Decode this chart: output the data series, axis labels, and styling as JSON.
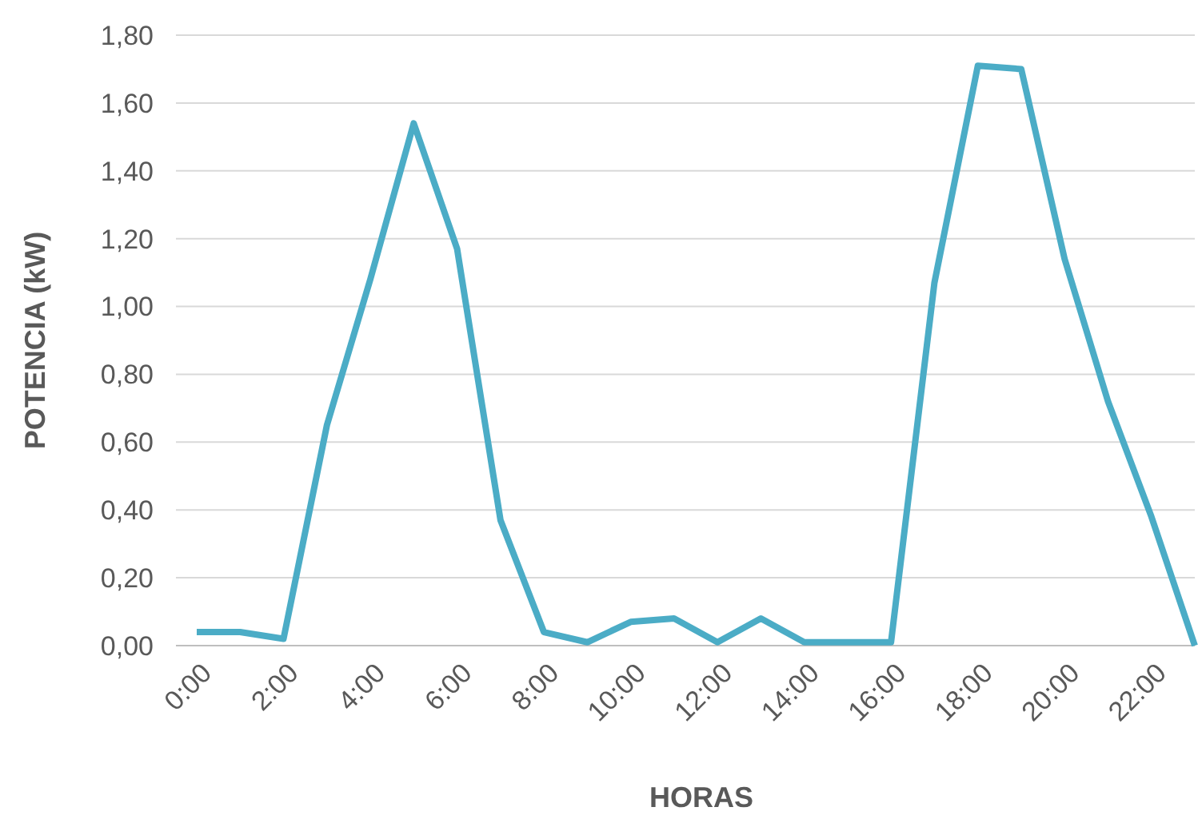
{
  "chart_data": {
    "type": "line",
    "xlabel": "HORAS",
    "ylabel": "POTENCIA (kW)",
    "categories": [
      "0:00",
      null,
      "2:00",
      null,
      "4:00",
      null,
      "6:00",
      null,
      "8:00",
      null,
      "10:00",
      null,
      "12:00",
      null,
      "14:00",
      null,
      "16:00",
      null,
      "18:00",
      null,
      "20:00",
      null,
      "22:00",
      null
    ],
    "series": [
      {
        "color": "#4bacc6",
        "values": [
          0.04,
          0.04,
          0.02,
          0.65,
          1.08,
          1.54,
          1.17,
          0.37,
          0.04,
          0.01,
          0.07,
          0.08,
          0.01,
          0.08,
          0.01,
          0.01,
          0.01,
          1.07,
          1.71,
          1.7,
          1.14,
          0.72,
          0.38,
          0.0
        ]
      }
    ],
    "ylim": [
      0,
      1.8
    ],
    "yticks": [
      {
        "value": 0,
        "label": "0,00"
      },
      {
        "value": 0.2,
        "label": "0,20"
      },
      {
        "value": 0.4,
        "label": "0,40"
      },
      {
        "value": 0.6,
        "label": "0,60"
      },
      {
        "value": 0.8,
        "label": "0,80"
      },
      {
        "value": 1.0,
        "label": "1,00"
      },
      {
        "value": 1.2,
        "label": "1,20"
      },
      {
        "value": 1.4,
        "label": "1,40"
      },
      {
        "value": 1.6,
        "label": "1,60"
      },
      {
        "value": 1.8,
        "label": "1,80"
      }
    ],
    "grid": "y",
    "marker": "none",
    "line_style": "solid"
  }
}
